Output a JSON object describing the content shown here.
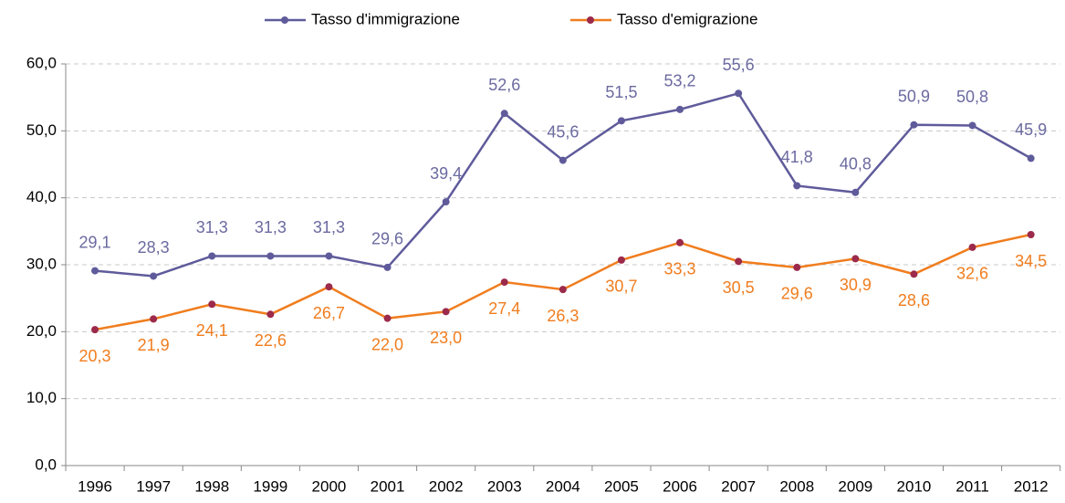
{
  "chart_data": {
    "type": "line",
    "categories": [
      "1996",
      "1997",
      "1998",
      "1999",
      "2000",
      "2001",
      "2002",
      "2003",
      "2004",
      "2005",
      "2006",
      "2007",
      "2008",
      "2009",
      "2010",
      "2011",
      "2012"
    ],
    "series": [
      {
        "name": "Tasso d'immigrazione",
        "color": "#5f5b9b",
        "marker_color": "#5f5b9b",
        "label_color": "#6b6aa0",
        "values": [
          29.1,
          28.3,
          31.3,
          31.3,
          31.3,
          29.6,
          39.4,
          52.6,
          45.6,
          51.5,
          53.2,
          55.6,
          41.8,
          40.8,
          50.9,
          50.8,
          45.9
        ],
        "value_labels": [
          "29,1",
          "28,3",
          "31,3",
          "31,3",
          "31,3",
          "29,6",
          "39,4",
          "52,6",
          "45,6",
          "51,5",
          "53,2",
          "55,6",
          "41,8",
          "40,8",
          "50,9",
          "50,8",
          "45,9"
        ]
      },
      {
        "name": "Tasso d'emigrazione",
        "color": "#f07d1e",
        "marker_color": "#9c2a4a",
        "label_color": "#f07d1e",
        "values": [
          20.3,
          21.9,
          24.1,
          22.6,
          26.7,
          22.0,
          23.0,
          27.4,
          26.3,
          30.7,
          33.3,
          30.5,
          29.6,
          30.9,
          28.6,
          32.6,
          34.5
        ],
        "value_labels": [
          "20,3",
          "21,9",
          "24,1",
          "22,6",
          "26,7",
          "22,0",
          "23,0",
          "27,4",
          "26,3",
          "30,7",
          "33,3",
          "30,5",
          "29,6",
          "30,9",
          "28,6",
          "32,6",
          "34,5"
        ]
      }
    ],
    "ylim": [
      0,
      60
    ],
    "yticks": [
      {
        "value": 0,
        "label": "0,0"
      },
      {
        "value": 10,
        "label": "10,0"
      },
      {
        "value": 20,
        "label": "20,0"
      },
      {
        "value": 30,
        "label": "30,0"
      },
      {
        "value": 40,
        "label": "40,0"
      },
      {
        "value": 50,
        "label": "50,0"
      },
      {
        "value": 60,
        "label": "60,0"
      }
    ],
    "grid": true,
    "legend": "top"
  }
}
